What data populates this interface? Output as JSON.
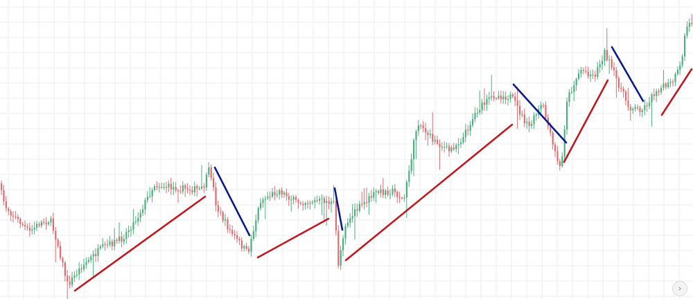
{
  "chart_data": {
    "type": "candlestick",
    "grid": true,
    "xlabel": "",
    "ylabel": "",
    "colors": {
      "up": "#49b07c",
      "down": "#e26a6f",
      "grid": "#eeeeee",
      "uptrend_line": "#c0181e",
      "downtrend_line": "#0a1a8c",
      "background": "#ffffff"
    },
    "price_path": [
      [
        0,
        265
      ],
      [
        10,
        298
      ],
      [
        25,
        315
      ],
      [
        45,
        335
      ],
      [
        60,
        322
      ],
      [
        75,
        318
      ],
      [
        85,
        350
      ],
      [
        100,
        412
      ],
      [
        120,
        385
      ],
      [
        150,
        358
      ],
      [
        178,
        345
      ],
      [
        200,
        315
      ],
      [
        225,
        267
      ],
      [
        260,
        272
      ],
      [
        295,
        274
      ],
      [
        305,
        242
      ],
      [
        315,
        300
      ],
      [
        335,
        335
      ],
      [
        360,
        366
      ],
      [
        378,
        290
      ],
      [
        405,
        275
      ],
      [
        430,
        292
      ],
      [
        470,
        290
      ],
      [
        485,
        295
      ],
      [
        490,
        385
      ],
      [
        500,
        325
      ],
      [
        520,
        300
      ],
      [
        545,
        278
      ],
      [
        570,
        276
      ],
      [
        585,
        290
      ],
      [
        605,
        175
      ],
      [
        625,
        200
      ],
      [
        650,
        218
      ],
      [
        670,
        200
      ],
      [
        690,
        160
      ],
      [
        715,
        138
      ],
      [
        740,
        140
      ],
      [
        765,
        185
      ],
      [
        785,
        150
      ],
      [
        800,
        210
      ],
      [
        812,
        248
      ],
      [
        820,
        145
      ],
      [
        840,
        100
      ],
      [
        860,
        110
      ],
      [
        875,
        75
      ],
      [
        890,
        110
      ],
      [
        910,
        155
      ],
      [
        930,
        158
      ],
      [
        950,
        130
      ],
      [
        972,
        120
      ],
      [
        985,
        95
      ],
      [
        992,
        40
      ],
      [
        1000,
        32
      ]
    ],
    "trend_lines": [
      {
        "type": "uptrend",
        "from": [
          108,
          420
        ],
        "to": [
          296,
          284
        ]
      },
      {
        "type": "downtrend",
        "from": [
          310,
          242
        ],
        "to": [
          360,
          340
        ]
      },
      {
        "type": "uptrend",
        "from": [
          372,
          372
        ],
        "to": [
          474,
          316
        ]
      },
      {
        "type": "downtrend",
        "from": [
          483,
          272
        ],
        "to": [
          494,
          332
        ]
      },
      {
        "type": "uptrend",
        "from": [
          499,
          376
        ],
        "to": [
          739,
          180
        ]
      },
      {
        "type": "downtrend",
        "from": [
          741,
          122
        ],
        "to": [
          817,
          206
        ]
      },
      {
        "type": "uptrend",
        "from": [
          814,
          234
        ],
        "to": [
          877,
          116
        ]
      },
      {
        "type": "downtrend",
        "from": [
          883,
          68
        ],
        "to": [
          928,
          146
        ]
      },
      {
        "type": "uptrend",
        "from": [
          955,
          166
        ],
        "to": [
          998,
          100
        ]
      }
    ]
  },
  "controls": {
    "scroll_right_icon": "chevron-right-icon",
    "scroll_right_glyph": "›"
  }
}
